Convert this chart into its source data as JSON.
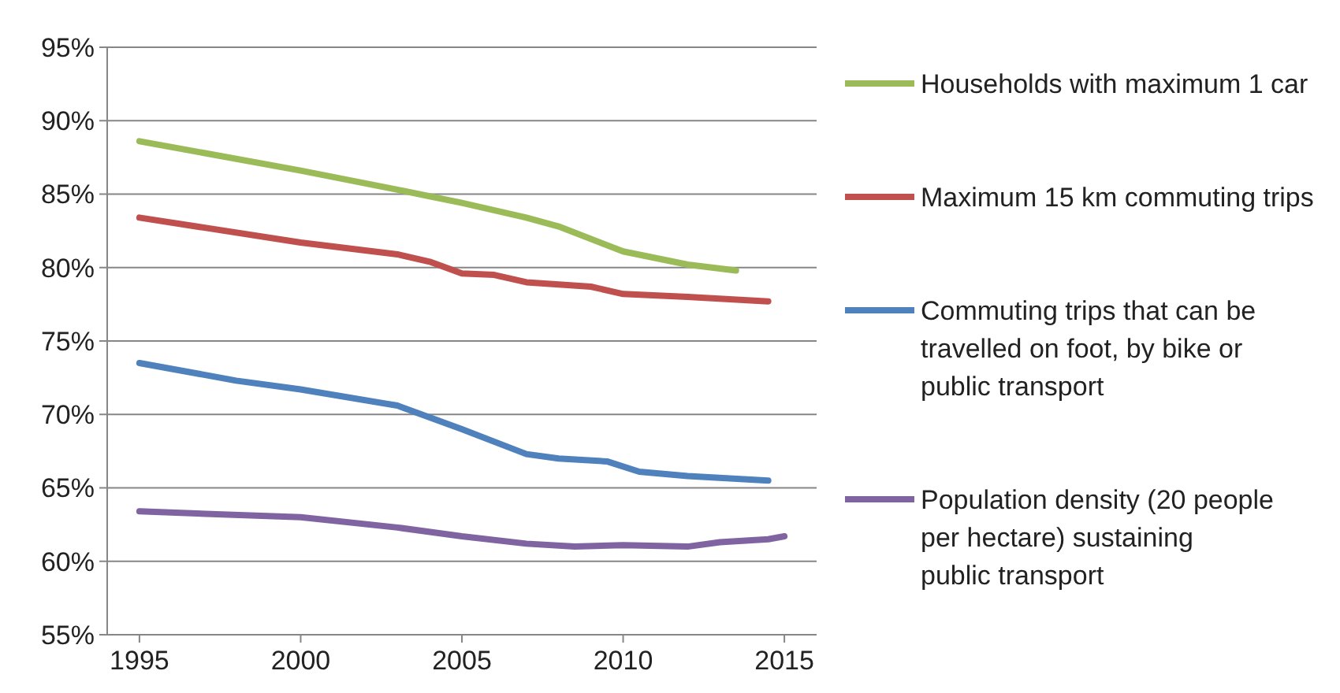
{
  "chart_data": {
    "type": "line",
    "xlim": [
      1994,
      2016
    ],
    "xticks": [
      1995,
      2000,
      2005,
      2010,
      2015
    ],
    "ylim": [
      55,
      95
    ],
    "yticks": [
      {
        "value": 55,
        "label": "55%"
      },
      {
        "value": 60,
        "label": "60%"
      },
      {
        "value": 65,
        "label": "65%"
      },
      {
        "value": 70,
        "label": "70%"
      },
      {
        "value": 75,
        "label": "75%"
      },
      {
        "value": 80,
        "label": "80%"
      },
      {
        "value": 85,
        "label": "85%"
      },
      {
        "value": 90,
        "label": "90%"
      },
      {
        "value": 95,
        "label": "95%"
      }
    ],
    "grid": "y",
    "legend": "right",
    "marker": "none",
    "line_style": "solid",
    "series": [
      {
        "name": "Households with maximum 1 car",
        "color": "#9bbb59",
        "x": [
          1995,
          2000,
          2003,
          2005,
          2007,
          2008,
          2010,
          2012,
          2013.5
        ],
        "values": [
          88.6,
          86.6,
          85.3,
          84.4,
          83.4,
          82.8,
          81.1,
          80.2,
          79.8
        ]
      },
      {
        "name": "Maximum 15 km commuting trips",
        "color": "#c0504d",
        "x": [
          1995,
          2000,
          2003,
          2004,
          2005,
          2006,
          2007,
          2009,
          2010,
          2012,
          2014.5
        ],
        "values": [
          83.4,
          81.7,
          80.9,
          80.4,
          79.6,
          79.5,
          79.0,
          78.7,
          78.2,
          78.0,
          77.7
        ]
      },
      {
        "name": "Commuting trips that can be travelled on foot, by bike or public transport",
        "color": "#4f81bd",
        "x": [
          1995,
          1998,
          2000,
          2003,
          2005,
          2007,
          2008,
          2009.5,
          2010.5,
          2012,
          2014.5
        ],
        "values": [
          73.5,
          72.3,
          71.7,
          70.6,
          69.0,
          67.3,
          67.0,
          66.8,
          66.1,
          65.8,
          65.5
        ]
      },
      {
        "name": "Population density (20 people per hectare) sustaining  public transport",
        "color": "#8064a2",
        "x": [
          1995,
          2000,
          2003,
          2005,
          2007,
          2008.5,
          2010,
          2012,
          2013,
          2014.5,
          2015
        ],
        "values": [
          63.4,
          63.0,
          62.3,
          61.7,
          61.2,
          61.0,
          61.1,
          61.0,
          61.3,
          61.5,
          61.7
        ]
      }
    ]
  }
}
